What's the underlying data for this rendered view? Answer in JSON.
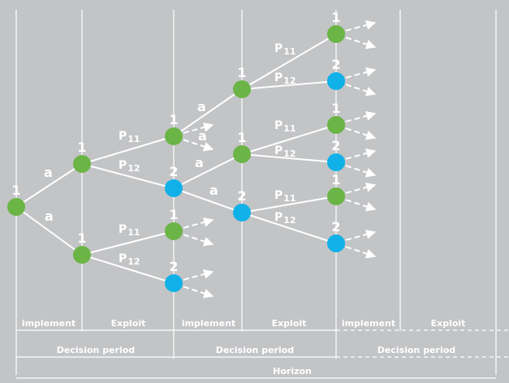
{
  "colors": {
    "background": "#c3c4c6",
    "line": "#ffffff",
    "node_green": "#6ab545",
    "node_blue": "#10b1e8"
  },
  "labels": {
    "action": "a",
    "p11_main": "P",
    "p11_sub": "11",
    "p12_main": "P",
    "p12_sub": "12"
  },
  "nodes": [
    {
      "id": "n0",
      "label": "1",
      "kind": "green"
    },
    {
      "id": "n1",
      "label": "1",
      "kind": "green"
    },
    {
      "id": "n2",
      "label": "1",
      "kind": "green"
    },
    {
      "id": "n3",
      "label": "1",
      "kind": "green"
    },
    {
      "id": "n4",
      "label": "2",
      "kind": "blue"
    },
    {
      "id": "n5",
      "label": "1",
      "kind": "green"
    },
    {
      "id": "n6",
      "label": "2",
      "kind": "blue"
    },
    {
      "id": "n7",
      "label": "1",
      "kind": "green"
    },
    {
      "id": "n8",
      "label": "1",
      "kind": "green"
    },
    {
      "id": "n9",
      "label": "2",
      "kind": "blue"
    },
    {
      "id": "n10",
      "label": "1",
      "kind": "green"
    },
    {
      "id": "n11",
      "label": "2",
      "kind": "blue"
    },
    {
      "id": "n12",
      "label": "1",
      "kind": "green"
    },
    {
      "id": "n13",
      "label": "2",
      "kind": "blue"
    },
    {
      "id": "n14",
      "label": "1",
      "kind": "green"
    },
    {
      "id": "n15",
      "label": "2",
      "kind": "blue"
    }
  ],
  "phases": [
    {
      "label": "implement"
    },
    {
      "label": "Exploit"
    },
    {
      "label": "implement"
    },
    {
      "label": "Exploit"
    },
    {
      "label": "implement"
    },
    {
      "label": "Exploit"
    }
  ],
  "periods": [
    {
      "label": "Decision period"
    },
    {
      "label": "Decision period"
    },
    {
      "label": "Decision period"
    }
  ],
  "horizon": {
    "label": "Horizon"
  }
}
